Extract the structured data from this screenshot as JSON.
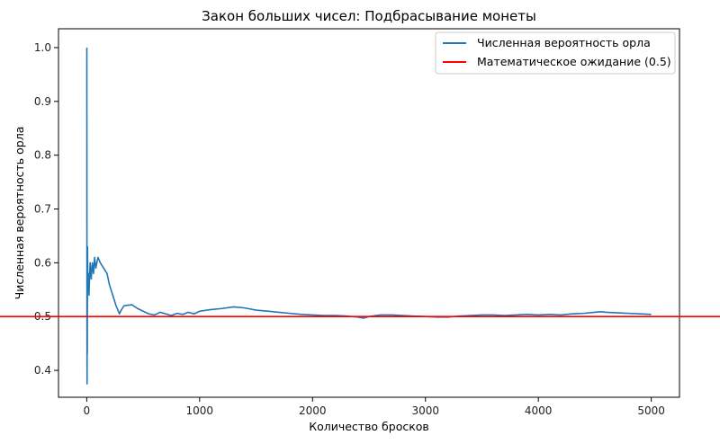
{
  "chart_data": {
    "type": "line",
    "title": "Закон больших чисел: Подбрасывание монеты",
    "xlabel": "Количество бросков",
    "ylabel": "Численная вероятность орла",
    "xlim": [
      -250,
      5250
    ],
    "ylim": [
      0.35,
      1.035
    ],
    "xticks": [
      0,
      1000,
      2000,
      3000,
      4000,
      5000
    ],
    "yticks": [
      0.4,
      0.5,
      0.6,
      0.7,
      0.8,
      0.9,
      1.0
    ],
    "xtick_labels": [
      "0",
      "1000",
      "2000",
      "3000",
      "4000",
      "5000"
    ],
    "ytick_labels": [
      "0.4",
      "0.5",
      "0.6",
      "0.7",
      "0.8",
      "0.9",
      "1.0"
    ],
    "grid": false,
    "legend_position": "top-right",
    "series": [
      {
        "name": "Численная вероятность орла",
        "color": "#1f77b4",
        "x": [
          1,
          2,
          3,
          4,
          5,
          7,
          10,
          15,
          20,
          30,
          40,
          50,
          60,
          70,
          80,
          90,
          100,
          120,
          150,
          180,
          200,
          230,
          260,
          290,
          300,
          330,
          360,
          400,
          450,
          500,
          550,
          600,
          650,
          700,
          750,
          800,
          850,
          900,
          950,
          1000,
          1100,
          1200,
          1300,
          1400,
          1500,
          1600,
          1700,
          1800,
          1900,
          2000,
          2100,
          2200,
          2300,
          2400,
          2450,
          2500,
          2600,
          2700,
          2800,
          2900,
          3000,
          3100,
          3200,
          3300,
          3400,
          3500,
          3600,
          3700,
          3800,
          3900,
          4000,
          4100,
          4200,
          4300,
          4400,
          4500,
          4550,
          4600,
          4700,
          4800,
          4900,
          5000
        ],
        "y": [
          1.0,
          0.5,
          0.375,
          0.62,
          0.43,
          0.63,
          0.55,
          0.58,
          0.54,
          0.6,
          0.57,
          0.6,
          0.58,
          0.61,
          0.59,
          0.6,
          0.61,
          0.6,
          0.59,
          0.58,
          0.56,
          0.54,
          0.52,
          0.505,
          0.51,
          0.52,
          0.521,
          0.522,
          0.515,
          0.51,
          0.505,
          0.503,
          0.508,
          0.505,
          0.502,
          0.506,
          0.504,
          0.508,
          0.505,
          0.51,
          0.513,
          0.515,
          0.518,
          0.516,
          0.512,
          0.51,
          0.508,
          0.506,
          0.504,
          0.503,
          0.502,
          0.502,
          0.501,
          0.499,
          0.497,
          0.5,
          0.503,
          0.503,
          0.502,
          0.501,
          0.5,
          0.499,
          0.499,
          0.501,
          0.502,
          0.503,
          0.503,
          0.502,
          0.503,
          0.504,
          0.503,
          0.504,
          0.503,
          0.505,
          0.506,
          0.508,
          0.509,
          0.508,
          0.507,
          0.506,
          0.505,
          0.504
        ]
      }
    ],
    "reference_line": {
      "name": "Математическое ожидание (0.5)",
      "y": 0.5,
      "color": "#ff0000"
    }
  }
}
